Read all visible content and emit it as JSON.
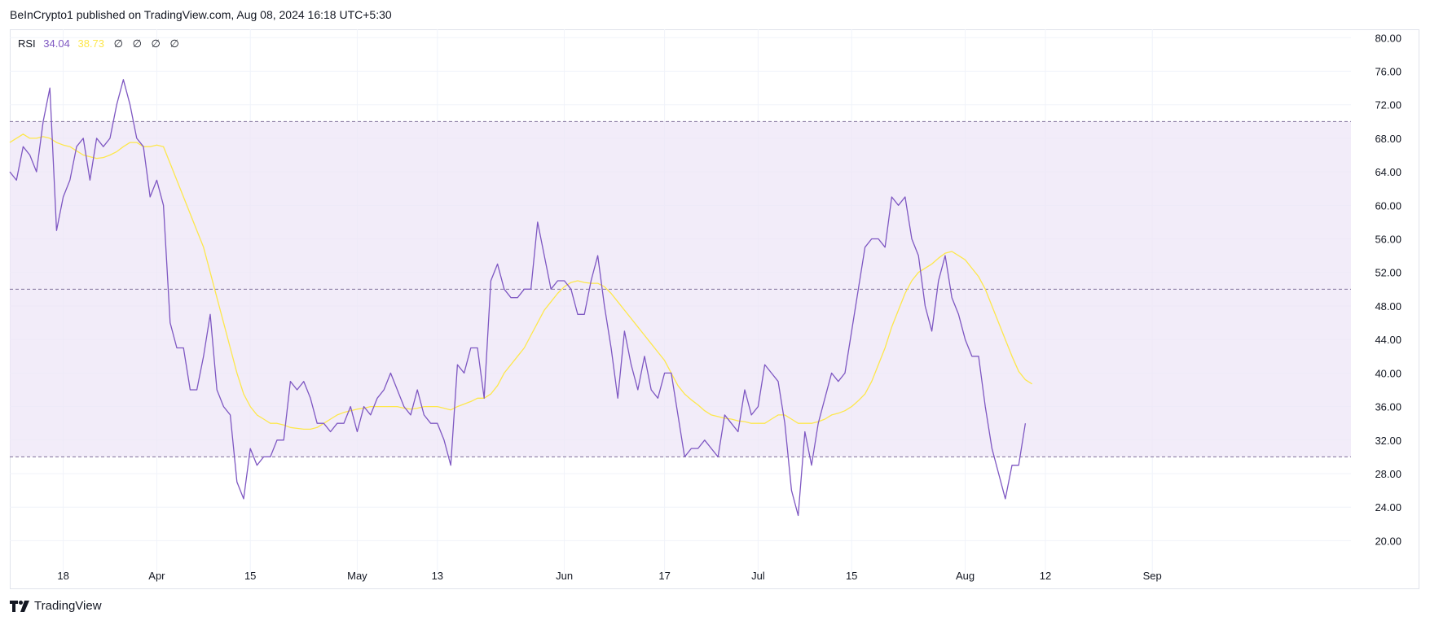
{
  "header": {
    "text": "BeInCrypto1 published on TradingView.com, Aug 08, 2024 16:18 UTC+5:30"
  },
  "legend": {
    "label": "RSI",
    "rsi_value": "34.04",
    "ma_value": "38.73",
    "placeholders": [
      "∅",
      "∅",
      "∅",
      "∅"
    ]
  },
  "footer": {
    "brand": "TradingView",
    "logo_icon": "tradingview-logo-icon"
  },
  "colors": {
    "rsi": "#7e57c2",
    "ma": "#fde74c",
    "band": "#ede6f7",
    "grid": "#f0f3fa",
    "axis_text": "#131722",
    "dash": "#7e6f99"
  },
  "chart_data": {
    "type": "line",
    "ylim": [
      18,
      81
    ],
    "grid": true,
    "legend_position": "top-left",
    "yticks": [
      20,
      24,
      28,
      32,
      36,
      40,
      44,
      48,
      52,
      56,
      60,
      64,
      68,
      72,
      76,
      80
    ],
    "ytick_labels": [
      "20.00",
      "24.00",
      "28.00",
      "32.00",
      "36.00",
      "40.00",
      "44.00",
      "48.00",
      "52.00",
      "56.00",
      "60.00",
      "64.00",
      "68.00",
      "72.00",
      "76.00",
      "80.00"
    ],
    "xlim": [
      0,
      168
    ],
    "xticks": [
      {
        "x": 8,
        "label": "18"
      },
      {
        "x": 22,
        "label": "Apr"
      },
      {
        "x": 36,
        "label": "15"
      },
      {
        "x": 52,
        "label": "May"
      },
      {
        "x": 64,
        "label": "13"
      },
      {
        "x": 83,
        "label": "Jun"
      },
      {
        "x": 98,
        "label": "17"
      },
      {
        "x": 112,
        "label": "Jul"
      },
      {
        "x": 126,
        "label": "15"
      },
      {
        "x": 143,
        "label": "Aug"
      },
      {
        "x": 155,
        "label": "12"
      },
      {
        "x": 171,
        "label": "Sep"
      }
    ],
    "bands": {
      "upper": 70,
      "middle": 50,
      "lower": 30
    },
    "series": [
      {
        "name": "RSI",
        "x_start": 0,
        "values": [
          64,
          63,
          67,
          66,
          64,
          70,
          74,
          57,
          61,
          63,
          67,
          68,
          63,
          68,
          67,
          68,
          72,
          75,
          72,
          68,
          67,
          61,
          63,
          60,
          46,
          43,
          43,
          38,
          38,
          42,
          47,
          38,
          36,
          35,
          27,
          25,
          31,
          29,
          30,
          30,
          32,
          32,
          39,
          38,
          39,
          37,
          34,
          34,
          33,
          34,
          34,
          36,
          33,
          36,
          35,
          37,
          38,
          40,
          38,
          36,
          35,
          38,
          35,
          34,
          34,
          32,
          29,
          41,
          40,
          43,
          43,
          37,
          51,
          53,
          50,
          49,
          49,
          50,
          50,
          58,
          54,
          50,
          51,
          51,
          50,
          47,
          47,
          51,
          54,
          48,
          43,
          37,
          45,
          41,
          38,
          42,
          38,
          37,
          40,
          40,
          35,
          30,
          31,
          31,
          32,
          31,
          30,
          35,
          34,
          33,
          38,
          35,
          36,
          41,
          40,
          39,
          34,
          26,
          23,
          33,
          29,
          34,
          37,
          40,
          39,
          40,
          45,
          50,
          55,
          56,
          56,
          55,
          61,
          60,
          61,
          56,
          54,
          48,
          45,
          51,
          54,
          49,
          47,
          44,
          42,
          42,
          36,
          31,
          28,
          25,
          29,
          29,
          34
        ]
      },
      {
        "name": "MA",
        "x_start": 0,
        "values": [
          67.5,
          68,
          68.5,
          68,
          68,
          68.2,
          68,
          67.5,
          67.2,
          67,
          66.5,
          66,
          65.8,
          65.6,
          65.7,
          66,
          66.4,
          67,
          67.5,
          67.5,
          67,
          67,
          67.2,
          67,
          65,
          63,
          61,
          59,
          57,
          55,
          52,
          49,
          46,
          43,
          40,
          37.5,
          36,
          35,
          34.5,
          34,
          34,
          33.8,
          33.5,
          33.4,
          33.3,
          33.3,
          33.5,
          34,
          34.5,
          35,
          35.3,
          35.5,
          35.7,
          35.8,
          36,
          36,
          36,
          36,
          36,
          35.8,
          35.7,
          35.8,
          36,
          36,
          36,
          35.8,
          35.6,
          36,
          36.3,
          36.6,
          37,
          37,
          37.5,
          38.5,
          40,
          41,
          42,
          43,
          44.5,
          46,
          47.5,
          48.5,
          49.5,
          50.3,
          50.8,
          51,
          50.8,
          50.7,
          50.7,
          50.3,
          49.5,
          48.5,
          47.5,
          46.5,
          45.5,
          44.5,
          43.5,
          42.5,
          41.5,
          40,
          38.5,
          37.5,
          36.8,
          36.2,
          35.5,
          35,
          34.8,
          34.6,
          34.5,
          34.3,
          34.2,
          34,
          34,
          34,
          34.5,
          35,
          35,
          34.5,
          34,
          34,
          34,
          34.2,
          34.5,
          35,
          35.2,
          35.5,
          36,
          36.7,
          37.5,
          39,
          41,
          43,
          45.5,
          47.5,
          49.5,
          51,
          52,
          52.5,
          53,
          53.7,
          54.3,
          54.5,
          54,
          53.5,
          52.5,
          51.5,
          50,
          48,
          46,
          44,
          42,
          40.2,
          39.2,
          38.7
        ]
      }
    ]
  }
}
